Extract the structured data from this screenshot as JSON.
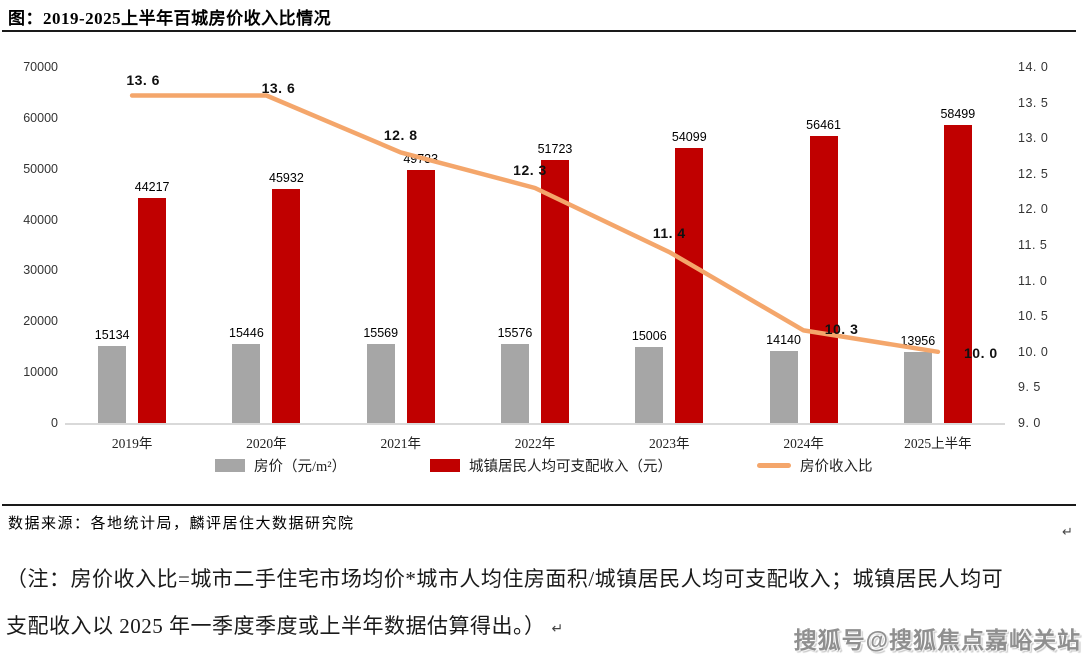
{
  "figure": {
    "title": "图：2019-2025上半年百城房价收入比情况",
    "source": "数据来源：各地统计局，麟评居住大数据研究院",
    "note_lines": [
      "（注：房价收入比=城市二手住宅市场均价*城市人均住房面积/城镇居民人均可支配收入；城镇居民人均可",
      "支配收入以 2025 年一季度季度或上半年数据估算得出。）"
    ],
    "paragraph_mark": "↵",
    "watermark": "搜狐号@搜狐焦点嘉峪关站"
  },
  "chart_data": {
    "type": "bar",
    "subtype": "grouped-bars-with-line-overlay-dual-axis",
    "title": "2019-2025上半年百城房价收入比情况",
    "categories": [
      "2019年",
      "2020年",
      "2021年",
      "2022年",
      "2023年",
      "2024年",
      "2025上半年"
    ],
    "series": [
      {
        "name": "房价（元/m²）",
        "type": "bar",
        "axis": "left",
        "color": "#A6A6A6",
        "values": [
          15134,
          15446,
          15569,
          15576,
          15006,
          14140,
          13956
        ]
      },
      {
        "name": "城镇居民人均可支配收入（元）",
        "type": "bar",
        "axis": "left",
        "color": "#C00000",
        "values": [
          44217,
          45932,
          49733,
          51723,
          54099,
          56461,
          58499
        ]
      },
      {
        "name": "房价收入比",
        "type": "line",
        "axis": "right",
        "color": "#F4A66B",
        "values": [
          13.6,
          13.6,
          12.8,
          12.3,
          11.4,
          10.3,
          10.0
        ]
      }
    ],
    "left_axis": {
      "min": 0,
      "max": 70000,
      "step": 10000
    },
    "right_axis": {
      "min": 9.0,
      "max": 14.0,
      "step": 0.5
    },
    "grid": false,
    "legend_position": "bottom"
  }
}
